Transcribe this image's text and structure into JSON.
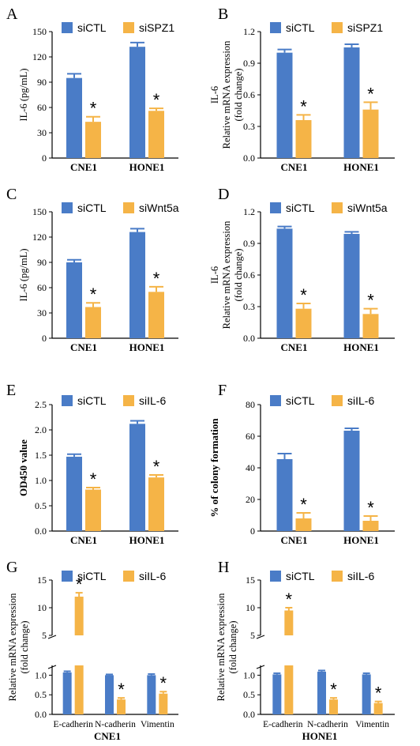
{
  "colors": {
    "blue": "#4a7cc7",
    "orange": "#f5b447",
    "axis": "#000000"
  },
  "chart_data": [
    {
      "panel": "A",
      "type": "bar",
      "categories": [
        "CNE1",
        "HONE1"
      ],
      "series": [
        {
          "name": "siCTL",
          "values": [
            95,
            132
          ],
          "errors": [
            5,
            5
          ]
        },
        {
          "name": "siSPZ1",
          "values": [
            43,
            56
          ],
          "errors": [
            6,
            3
          ]
        }
      ],
      "ylabel": [
        "IL-6 (pg/mL)"
      ],
      "ylim": [
        0,
        150
      ],
      "yticks": [
        "0",
        "30",
        "60",
        "90",
        "120",
        "150"
      ],
      "significance": [
        "*",
        "*"
      ],
      "legend": "top"
    },
    {
      "panel": "B",
      "type": "bar",
      "categories": [
        "CNE1",
        "HONE1"
      ],
      "series": [
        {
          "name": "siCTL",
          "values": [
            1.0,
            1.05
          ],
          "errors": [
            0.03,
            0.03
          ]
        },
        {
          "name": "siSPZ1",
          "values": [
            0.36,
            0.46
          ],
          "errors": [
            0.05,
            0.07
          ]
        }
      ],
      "ylabel": [
        "IL-6",
        "Relative mRNA expression",
        "(fold change)"
      ],
      "ylim": [
        0,
        1.2
      ],
      "yticks": [
        "0.0",
        "0.3",
        "0.6",
        "0.9",
        "1.2"
      ],
      "significance": [
        "*",
        "*"
      ],
      "legend": "top"
    },
    {
      "panel": "C",
      "type": "bar",
      "categories": [
        "CNE1",
        "HONE1"
      ],
      "series": [
        {
          "name": "siCTL",
          "values": [
            90,
            126
          ],
          "errors": [
            3,
            4
          ]
        },
        {
          "name": "siWnt5a",
          "values": [
            37,
            55
          ],
          "errors": [
            5,
            6
          ]
        }
      ],
      "ylabel": [
        "IL-6 (pg/mL)"
      ],
      "ylim": [
        0,
        150
      ],
      "yticks": [
        "0",
        "30",
        "60",
        "90",
        "120",
        "150"
      ],
      "significance": [
        "*",
        "*"
      ],
      "legend": "top"
    },
    {
      "panel": "D",
      "type": "bar",
      "categories": [
        "CNE1",
        "HONE1"
      ],
      "series": [
        {
          "name": "siCTL",
          "values": [
            1.04,
            0.99
          ],
          "errors": [
            0.02,
            0.02
          ]
        },
        {
          "name": "siWnt5a",
          "values": [
            0.28,
            0.23
          ],
          "errors": [
            0.05,
            0.05
          ]
        }
      ],
      "ylabel": [
        "IL-6",
        "Relative mRNA expression",
        "(fold change)"
      ],
      "ylim": [
        0,
        1.2
      ],
      "yticks": [
        "0.0",
        "0.3",
        "0.6",
        "0.9",
        "1.2"
      ],
      "significance": [
        "*",
        "*"
      ],
      "legend": "top"
    },
    {
      "panel": "E",
      "type": "bar",
      "categories": [
        "CNE1",
        "HONE1"
      ],
      "series": [
        {
          "name": "siCTL",
          "values": [
            1.47,
            2.12
          ],
          "errors": [
            0.05,
            0.06
          ]
        },
        {
          "name": "siIL-6",
          "values": [
            0.82,
            1.06
          ],
          "errors": [
            0.04,
            0.05
          ]
        }
      ],
      "ylabel": [
        "OD450 value"
      ],
      "ylabel_bold": true,
      "ylim": [
        0,
        2.5
      ],
      "yticks": [
        "0.0",
        "0.5",
        "1.0",
        "1.5",
        "2.0",
        "2.5"
      ],
      "significance": [
        "*",
        "*"
      ],
      "legend": "top"
    },
    {
      "panel": "F",
      "type": "bar",
      "categories": [
        "CNE1",
        "HONE1"
      ],
      "series": [
        {
          "name": "siCTL",
          "values": [
            45.5,
            63.5
          ],
          "errors": [
            3.5,
            1.5
          ]
        },
        {
          "name": "siIL-6",
          "values": [
            8,
            6.5
          ],
          "errors": [
            3.5,
            3
          ]
        }
      ],
      "ylabel": [
        "% of colony formation"
      ],
      "ylabel_bold": true,
      "ylim": [
        0,
        80
      ],
      "yticks": [
        "0",
        "20",
        "40",
        "60",
        "80"
      ],
      "significance": [
        "*",
        "*"
      ],
      "legend": "top"
    },
    {
      "panel": "G",
      "type": "bar",
      "categories": [
        "E-cadherin",
        "N-cadherin",
        "Vimentin"
      ],
      "series": [
        {
          "name": "siCTL",
          "values": [
            1.07,
            1.0,
            1.0
          ],
          "errors": [
            0.03,
            0.02,
            0.03
          ]
        },
        {
          "name": "siIL-6",
          "values": [
            12.0,
            0.38,
            0.53
          ],
          "errors": [
            0.7,
            0.04,
            0.05
          ]
        }
      ],
      "ylabel": [
        "Relative mRNA expression",
        "(fold change)"
      ],
      "ylim": [
        0,
        15
      ],
      "axis_break": [
        1.25,
        5
      ],
      "yticks_lower": [
        "0.0",
        "0.5",
        "1.0"
      ],
      "yticks_upper": [
        "5",
        "10",
        "15"
      ],
      "xlabel": "CNE1",
      "significance": [
        "*",
        "*",
        "*"
      ],
      "legend": "top"
    },
    {
      "panel": "H",
      "type": "bar",
      "categories": [
        "E-cadherin",
        "N-cadherin",
        "Vimentin"
      ],
      "series": [
        {
          "name": "siCTL",
          "values": [
            1.02,
            1.09,
            1.02
          ],
          "errors": [
            0.03,
            0.03,
            0.03
          ]
        },
        {
          "name": "siIL-6",
          "values": [
            9.5,
            0.38,
            0.29
          ],
          "errors": [
            0.5,
            0.04,
            0.04
          ]
        }
      ],
      "ylabel": [
        "Relative mRNA expression",
        "(fold change)"
      ],
      "ylim": [
        0,
        15
      ],
      "axis_break": [
        1.25,
        5
      ],
      "yticks_lower": [
        "0.0",
        "0.5",
        "1.0"
      ],
      "yticks_upper": [
        "5",
        "10",
        "15"
      ],
      "xlabel": "HONE1",
      "significance": [
        "*",
        "*",
        "*"
      ],
      "legend": "top"
    }
  ]
}
